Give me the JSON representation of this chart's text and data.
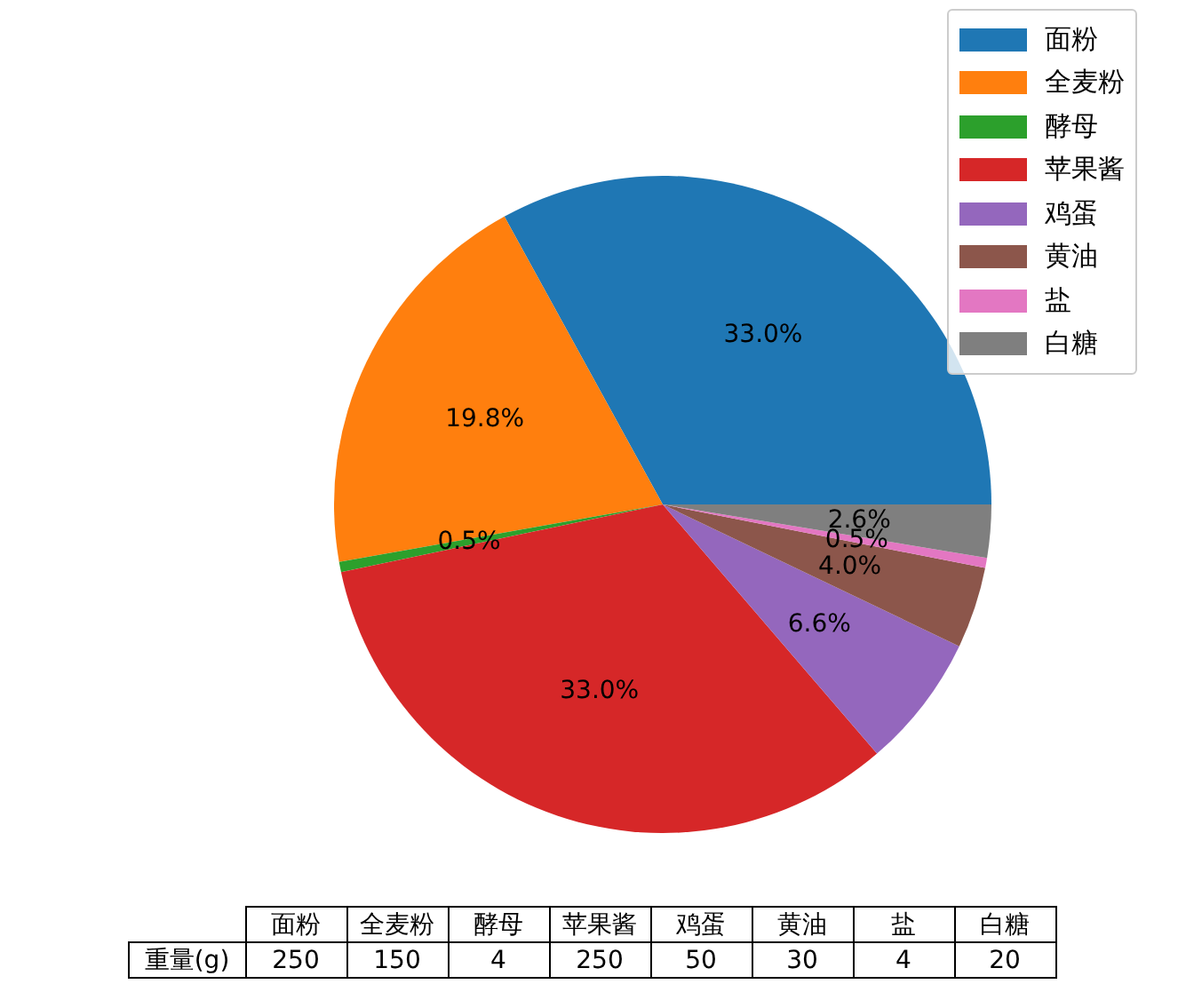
{
  "chart_data": {
    "type": "pie",
    "categories": [
      "面粉",
      "全麦粉",
      "酵母",
      "苹果酱",
      "鸡蛋",
      "黄油",
      "盐",
      "白糖"
    ],
    "values": [
      33.0,
      19.8,
      0.5,
      33.0,
      6.6,
      4.0,
      0.5,
      2.6
    ],
    "colors": [
      "#1f77b4",
      "#ff7f0e",
      "#2ca02c",
      "#d62728",
      "#9467bd",
      "#8c564b",
      "#e377c2",
      "#7f7f7f"
    ],
    "value_labels": [
      "33.0%",
      "19.8%",
      "0.5%",
      "33.0%",
      "6.6%",
      "4.0%",
      "0.5%",
      "2.6%"
    ],
    "annotations": [
      "重量(g)",
      "250",
      "150",
      "4",
      "250",
      "50",
      "30",
      "4",
      "20"
    ],
    "legend": "top right"
  }
}
